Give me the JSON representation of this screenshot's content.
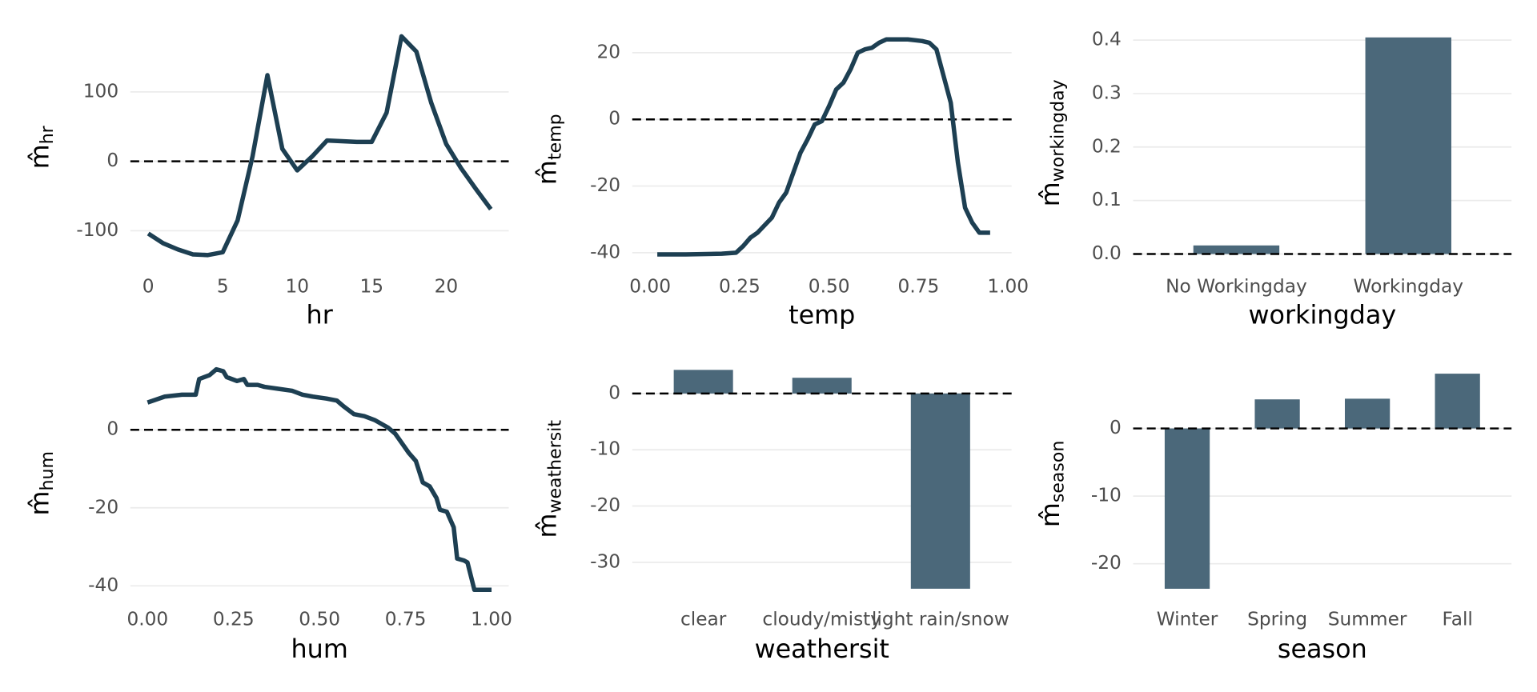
{
  "chart_data": [
    {
      "type": "line",
      "xlabel": "hr",
      "ylabel": "m̂",
      "ylabel_sub": "hr",
      "color": "#1d3f52",
      "hline": 0,
      "x": [
        0,
        1,
        2,
        3,
        4,
        5,
        6,
        7,
        8,
        9,
        10,
        11,
        12,
        13,
        14,
        15,
        16,
        17,
        18,
        19,
        20,
        21,
        22,
        23
      ],
      "values": [
        -104,
        -118,
        -127,
        -134,
        -135,
        -131,
        -85,
        7,
        124,
        18,
        -13,
        7,
        30,
        29,
        28,
        28,
        70,
        180,
        158,
        84,
        25,
        -10,
        -40,
        -69
      ],
      "xlim": [
        -1.2,
        24.2
      ],
      "ylim": [
        -150,
        190
      ],
      "xticks": [
        0,
        5,
        10,
        15,
        20
      ],
      "yticks": [
        -100,
        0,
        100
      ]
    },
    {
      "type": "line",
      "xlabel": "temp",
      "ylabel": "m̂",
      "ylabel_sub": "temp",
      "color": "#1d3f52",
      "hline": 0,
      "x": [
        0.02,
        0.1,
        0.2,
        0.24,
        0.26,
        0.28,
        0.3,
        0.34,
        0.36,
        0.38,
        0.4,
        0.42,
        0.44,
        0.46,
        0.48,
        0.5,
        0.52,
        0.54,
        0.56,
        0.58,
        0.6,
        0.62,
        0.64,
        0.66,
        0.7,
        0.72,
        0.76,
        0.78,
        0.8,
        0.82,
        0.84,
        0.86,
        0.88,
        0.9,
        0.92,
        0.95
      ],
      "values": [
        -40.5,
        -40.5,
        -40.3,
        -40,
        -38,
        -35.5,
        -34,
        -29.5,
        -25,
        -22,
        -16,
        -10,
        -6,
        -1.5,
        -0.5,
        4,
        9,
        11,
        15,
        20,
        21,
        21.5,
        23,
        24,
        24,
        24,
        23.5,
        23,
        21,
        13,
        5,
        -13,
        -26.5,
        -31,
        -34,
        -34
      ],
      "xlim": [
        -0.05,
        1.01
      ],
      "ylim": [
        -45,
        27
      ],
      "xticks": [
        {
          "value": 0,
          "label": "0.00"
        },
        {
          "value": 0.25,
          "label": "0.25"
        },
        {
          "value": 0.5,
          "label": "0.50"
        },
        {
          "value": 0.75,
          "label": "0.75"
        },
        {
          "value": 1,
          "label": "1.00"
        }
      ],
      "yticks": [
        -40,
        -20,
        0,
        20
      ]
    },
    {
      "type": "bar",
      "xlabel": "workingday",
      "ylabel": "m̂",
      "ylabel_sub": "workingday",
      "color": "#476577",
      "hline": 0,
      "categories": [
        "No Workingday",
        "Workingday"
      ],
      "values": [
        0.016,
        0.405
      ],
      "ylim": [
        -0.005,
        0.42
      ],
      "yticks": [
        {
          "value": 0,
          "label": "0.0"
        },
        0.1,
        0.2,
        0.3,
        0.4
      ]
    },
    {
      "type": "line",
      "xlabel": "hum",
      "ylabel": "m̂",
      "ylabel_sub": "hum",
      "color": "#1d3f52",
      "hline": 0,
      "x": [
        0,
        0.05,
        0.1,
        0.14,
        0.15,
        0.18,
        0.2,
        0.22,
        0.23,
        0.26,
        0.28,
        0.29,
        0.32,
        0.34,
        0.38,
        0.42,
        0.45,
        0.48,
        0.52,
        0.55,
        0.57,
        0.6,
        0.63,
        0.66,
        0.7,
        0.72,
        0.74,
        0.76,
        0.78,
        0.8,
        0.82,
        0.84,
        0.85,
        0.87,
        0.89,
        0.9,
        0.92,
        0.93,
        0.95,
        1
      ],
      "values": [
        7,
        8.5,
        9,
        9,
        13,
        14,
        15.5,
        15,
        13.5,
        12.5,
        13,
        11.5,
        11.5,
        11,
        10.5,
        10,
        9,
        8.5,
        8,
        7.5,
        6,
        4,
        3.5,
        2.5,
        0.5,
        -1,
        -3.5,
        -6,
        -8,
        -13.5,
        -14.5,
        -17.5,
        -20.5,
        -21,
        -25,
        -33,
        -33.5,
        -34,
        -41,
        -41
      ],
      "xlim": [
        -0.05,
        1.05
      ],
      "ylim": [
        -43.5,
        16
      ],
      "xticks": [
        {
          "value": 0,
          "label": "0.00"
        },
        {
          "value": 0.25,
          "label": "0.25"
        },
        {
          "value": 0.5,
          "label": "0.50"
        },
        {
          "value": 0.75,
          "label": "0.75"
        },
        {
          "value": 1,
          "label": "1.00"
        }
      ],
      "yticks": [
        -40,
        -20,
        0
      ]
    },
    {
      "type": "bar",
      "xlabel": "weathersit",
      "ylabel": "m̂",
      "ylabel_sub": "weathersit",
      "color": "#476577",
      "hline": 0,
      "categories": [
        "clear",
        "cloudy/misty",
        "light rain/snow"
      ],
      "values": [
        4.2,
        2.8,
        -34.7
      ],
      "ylim": [
        -35.4,
        5
      ],
      "yticks": [
        -30,
        -20,
        -10,
        0
      ]
    },
    {
      "type": "bar",
      "xlabel": "season",
      "ylabel": "m̂",
      "ylabel_sub": "season",
      "color": "#476577",
      "hline": 0,
      "categories": [
        "Winter",
        "Spring",
        "Summer",
        "Fall"
      ],
      "values": [
        -23.7,
        4.3,
        4.4,
        8.1
      ],
      "ylim": [
        -25,
        8.6
      ],
      "yticks": [
        -20,
        -10,
        0
      ]
    }
  ]
}
